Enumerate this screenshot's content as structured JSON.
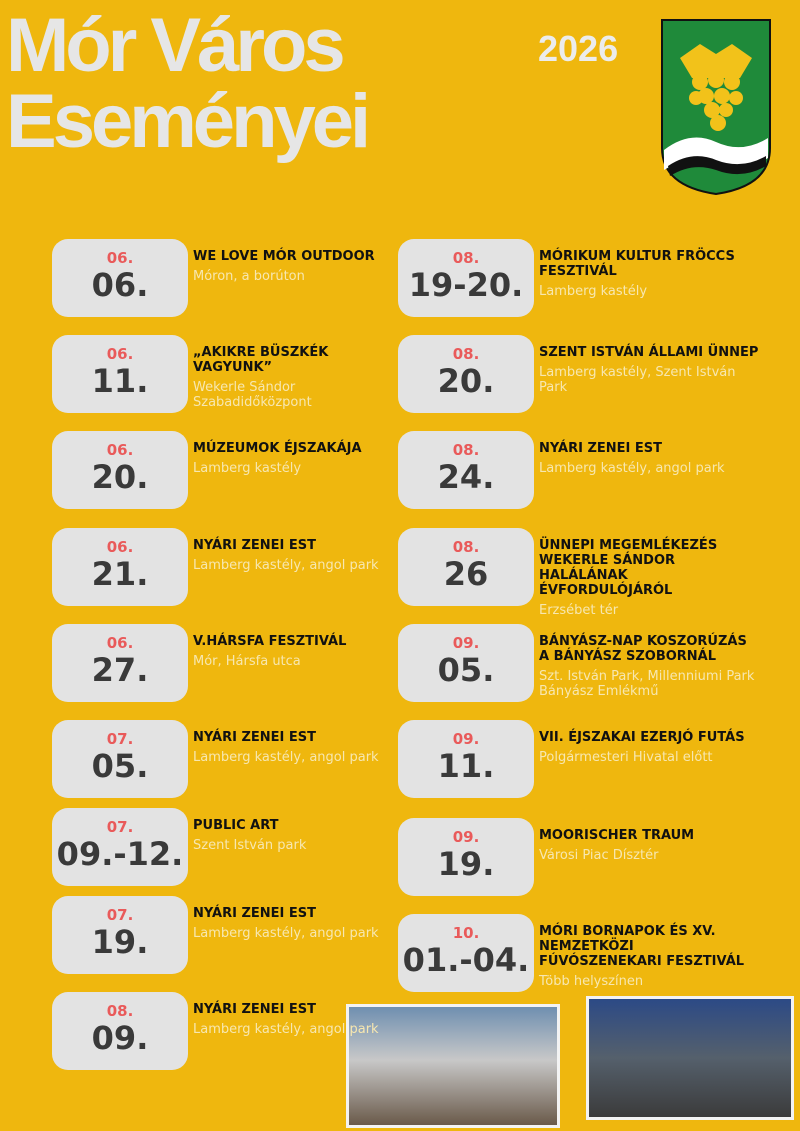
{
  "header": {
    "title_lines": [
      "Mór Város",
      "Eseményei"
    ],
    "year": "2026"
  },
  "events": [
    {
      "month": "06.",
      "day": "06.",
      "title": "WE LOVE MÓR OUTDOOR",
      "place": "Móron, a borúton"
    },
    {
      "month": "06.",
      "day": "11.",
      "title": "„AKIKRE BÜSZKÉK VAGYUNK”",
      "place": "Wekerle Sándor Szabadidőközpont"
    },
    {
      "month": "06.",
      "day": "20.",
      "title": "MÚZEUMOK ÉJSZAKÁJA",
      "place": "Lamberg kastély"
    },
    {
      "month": "06.",
      "day": "21.",
      "title": "NYÁRI ZENEI EST",
      "place": "Lamberg kastély, angol park"
    },
    {
      "month": "06.",
      "day": "27.",
      "title": "V.HÁRSFA FESZTIVÁL",
      "place": "Mór, Hársfa utca"
    },
    {
      "month": "07.",
      "day": "05.",
      "title": "NYÁRI ZENEI EST",
      "place": "Lamberg kastély, angol park"
    },
    {
      "month": "07.",
      "day": "09.-12.",
      "title": "PUBLIC ART",
      "place": "Szent István park"
    },
    {
      "month": "07.",
      "day": "19.",
      "title": "NYÁRI ZENEI EST",
      "place": "Lamberg kastély, angol park"
    },
    {
      "month": "08.",
      "day": "09.",
      "title": "NYÁRI ZENEI EST",
      "place": "Lamberg kastély, angol park"
    },
    {
      "month": "08.",
      "day": "19-20.",
      "title": "MÓRIKUM KULTUR FRÖCCS FESZTIVÁL",
      "place": "Lamberg kastély"
    },
    {
      "month": "08.",
      "day": "20.",
      "title": "SZENT ISTVÁN ÁLLAMI ÜNNEP",
      "place": "Lamberg kastély, Szent István Park"
    },
    {
      "month": "08.",
      "day": "24.",
      "title": "NYÁRI ZENEI EST",
      "place": "Lamberg kastély, angol park"
    },
    {
      "month": "08.",
      "day": "26",
      "title": "ÜNNEPI MEGEMLÉKEZÉS WEKERLE SÁNDOR HALÁLÁNAK ÉVFORDULÓJÁRÓL",
      "place": "Erzsébet tér"
    },
    {
      "month": "09.",
      "day": "05.",
      "title": "BÁNYÁSZ-NAP KOSZORÚZÁS A BÁNYÁSZ SZOBORNÁL",
      "place": "Szt. István Park, Millenniumi Park Bányász Emlékmű"
    },
    {
      "month": "09.",
      "day": "11.",
      "title": "VII. ÉJSZAKAI EZERJÓ FUTÁS",
      "place": "Polgármesteri Hivatal előtt"
    },
    {
      "month": "09.",
      "day": "19.",
      "title": "MOORISCHER TRAUM",
      "place": "Városi Piac Dísztér"
    },
    {
      "month": "10.",
      "day": "01.-04.",
      "title": "MÓRI BORNAPOK ÉS XV. NEMZETKÖZI FÚVÓSZENEKARI FESZTIVÁL",
      "place": "Több helyszínen"
    }
  ]
}
